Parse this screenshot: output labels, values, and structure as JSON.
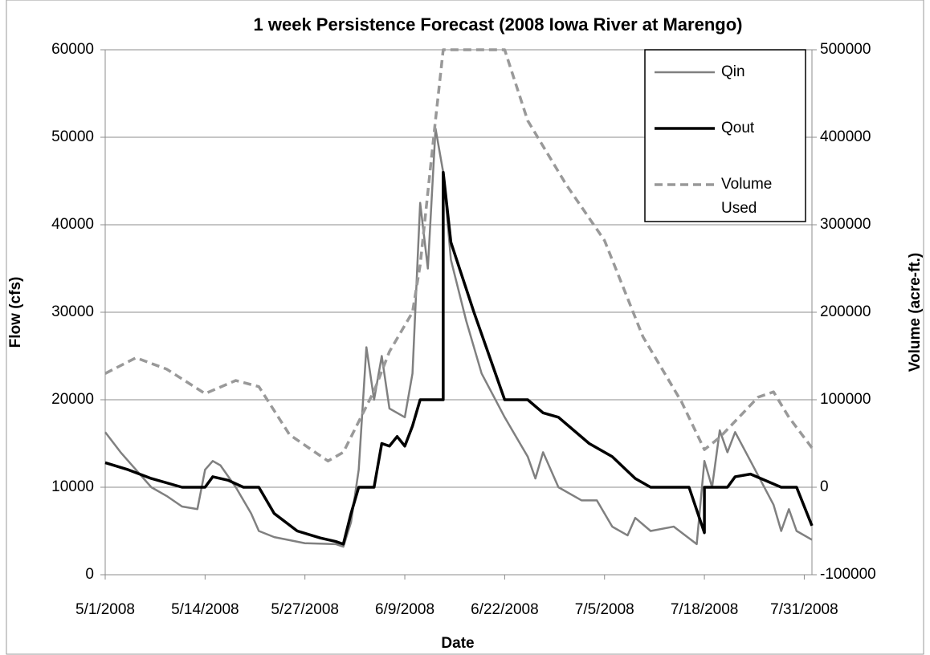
{
  "chart_data": {
    "type": "line",
    "title": "1 week Persistence Forecast (2008 Iowa River at Marengo)",
    "x_label": "Date",
    "y_label": "Flow (cfs)",
    "y2_label": "Volume (acre-ft.)",
    "xlim": [
      "5/1/2008",
      "8/1/2008"
    ],
    "xticks": [
      "5/1/2008",
      "5/14/2008",
      "5/27/2008",
      "6/9/2008",
      "6/22/2008",
      "7/5/2008",
      "7/18/2008",
      "7/31/2008"
    ],
    "ylim": [
      0,
      60000
    ],
    "yticks": [
      0,
      10000,
      20000,
      30000,
      40000,
      50000,
      60000
    ],
    "y2lim": [
      -100000,
      500000
    ],
    "y2ticks": [
      -100000,
      0,
      100000,
      200000,
      300000,
      400000,
      500000
    ],
    "grid": true,
    "legend": "upper right",
    "series": [
      {
        "name": "Qin",
        "color": "#808080",
        "style": "solid",
        "x": [
          "5/1/2008",
          "5/3/2008",
          "5/5/2008",
          "5/7/2008",
          "5/9/2008",
          "5/11/2008",
          "5/13/2008",
          "5/14/2008",
          "5/15/2008",
          "5/16/2008",
          "5/18/2008",
          "5/20/2008",
          "5/21/2008",
          "5/23/2008",
          "5/27/2008",
          "5/31/2008",
          "6/1/2008",
          "6/2/2008",
          "6/3/2008",
          "6/4/2008",
          "6/5/2008",
          "6/6/2008",
          "6/7/2008",
          "6/9/2008",
          "6/10/2008",
          "6/11/2008",
          "6/12/2008",
          "6/13/2008",
          "6/14/2008",
          "6/15/2008",
          "6/17/2008",
          "6/19/2008",
          "6/22/2008",
          "6/25/2008",
          "6/26/2008",
          "6/27/2008",
          "6/29/2008",
          "7/2/2008",
          "7/4/2008",
          "7/6/2008",
          "7/8/2008",
          "7/9/2008",
          "7/11/2008",
          "7/14/2008",
          "7/17/2008",
          "7/18/2008",
          "7/19/2008",
          "7/20/2008",
          "7/21/2008",
          "7/22/2008",
          "7/24/2008",
          "7/27/2008",
          "7/28/2008",
          "7/29/2008",
          "7/30/2008",
          "8/1/2008"
        ],
        "values": [
          16300,
          14000,
          12000,
          10000,
          9000,
          7800,
          7500,
          12000,
          13000,
          12500,
          10000,
          7000,
          5000,
          4300,
          3600,
          3500,
          3200,
          6000,
          12000,
          26000,
          20000,
          25000,
          19000,
          18000,
          23000,
          42500,
          35000,
          51000,
          46000,
          36000,
          29000,
          23000,
          18000,
          13500,
          11000,
          14000,
          10000,
          8500,
          8500,
          5500,
          4500,
          6500,
          5000,
          5500,
          3500,
          13000,
          10000,
          16500,
          14000,
          16300,
          13000,
          8000,
          5000,
          7500,
          5000,
          4000
        ]
      },
      {
        "name": "Qout",
        "color": "#000000",
        "style": "solid",
        "x": [
          "5/1/2008",
          "5/4/2008",
          "5/7/2008",
          "5/11/2008",
          "5/14/2008",
          "5/15/2008",
          "5/17/2008",
          "5/19/2008",
          "5/21/2008",
          "5/23/2008",
          "5/26/2008",
          "5/29/2008",
          "5/31/2008",
          "6/1/2008",
          "6/2/2008",
          "6/3/2008",
          "6/5/2008",
          "6/6/2008",
          "6/7/2008",
          "6/8/2008",
          "6/9/2008",
          "6/10/2008",
          "6/11/2008",
          "6/14/2008",
          "6/14/2008",
          "6/15/2008",
          "6/18/2008",
          "6/22/2008",
          "6/25/2008",
          "6/27/2008",
          "6/29/2008",
          "7/3/2008",
          "7/6/2008",
          "7/9/2008",
          "7/11/2008",
          "7/16/2008",
          "7/18/2008",
          "7/18/2008",
          "7/21/2008",
          "7/22/2008",
          "7/24/2008",
          "7/28/2008",
          "7/30/2008",
          "8/1/2008"
        ],
        "values": [
          12800,
          12000,
          11000,
          10000,
          10000,
          11200,
          10800,
          10000,
          10000,
          7000,
          5000,
          4200,
          3800,
          3500,
          7000,
          10000,
          10000,
          15000,
          14700,
          15800,
          14700,
          17000,
          20000,
          20000,
          46000,
          38000,
          30000,
          20000,
          20000,
          18500,
          18000,
          15000,
          13500,
          11000,
          10000,
          10000,
          4800,
          10000,
          10000,
          11200,
          11500,
          10000,
          10000,
          5600
        ]
      },
      {
        "name": "Volume Used",
        "color": "#999999",
        "style": "dashed",
        "axis": "y2",
        "x": [
          "5/1/2008",
          "5/5/2008",
          "5/9/2008",
          "5/14/2008",
          "5/18/2008",
          "5/21/2008",
          "5/25/2008",
          "5/30/2008",
          "6/1/2008",
          "6/5/2008",
          "6/7/2008",
          "6/10/2008",
          "6/11/2008",
          "6/13/2008",
          "6/14/2008",
          "6/22/2008",
          "6/25/2008",
          "6/30/2008",
          "7/5/2008",
          "7/10/2008",
          "7/15/2008",
          "7/18/2008",
          "7/20/2008",
          "7/25/2008",
          "7/27/2008",
          "7/29/2008",
          "8/1/2008"
        ],
        "values": [
          130000,
          148000,
          135000,
          107000,
          122000,
          115000,
          60000,
          30000,
          40000,
          110000,
          155000,
          200000,
          254000,
          420000,
          500000,
          500000,
          419000,
          346000,
          282000,
          172000,
          98000,
          43000,
          57000,
          103000,
          109000,
          80000,
          45000
        ]
      }
    ]
  }
}
